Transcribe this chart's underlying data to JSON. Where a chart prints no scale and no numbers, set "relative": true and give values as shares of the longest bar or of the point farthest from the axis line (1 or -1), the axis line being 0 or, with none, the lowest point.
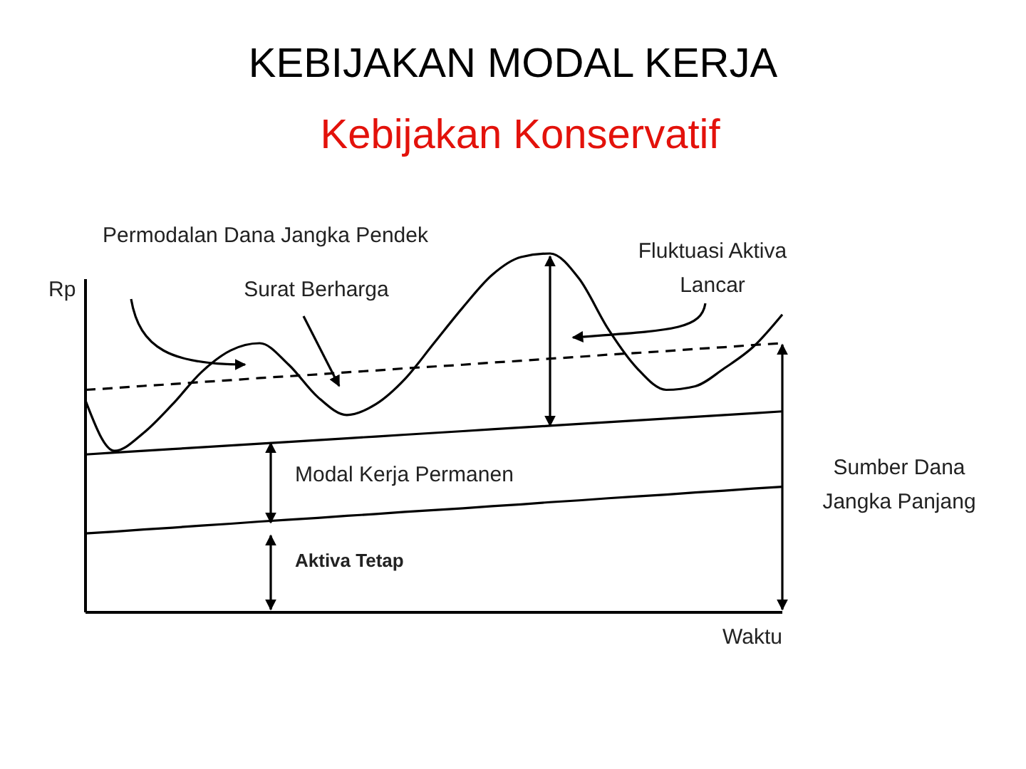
{
  "chart_data": {
    "type": "line",
    "title": "KEBIJAKAN MODAL KERJA",
    "subtitle": "Kebijakan Konservatif",
    "xlabel": "Waktu",
    "ylabel": "Rp",
    "relative": true,
    "marker": "none",
    "categories": [
      null,
      null,
      null,
      null,
      null,
      null,
      null,
      null,
      null,
      null,
      null,
      null,
      null,
      null,
      null,
      null,
      null,
      null,
      null,
      null,
      null,
      null,
      null,
      null,
      null
    ],
    "series": [
      {
        "color": "#000000",
        "line_style": "solid",
        "values": [
          0.59,
          0.45,
          0.5,
          0.58,
          0.67,
          0.73,
          0.75,
          0.69,
          0.6,
          0.55,
          0.58,
          0.65,
          0.75,
          0.85,
          0.94,
          0.99,
          1.0,
          0.93,
          0.79,
          0.68,
          0.62,
          0.63,
          0.68,
          0.74,
          0.83
        ]
      },
      {
        "color": "#000000",
        "line_style": "dashed",
        "values": [
          0.62,
          0.625,
          0.631,
          0.636,
          0.642,
          0.647,
          0.653,
          0.658,
          0.663,
          0.669,
          0.674,
          0.68,
          0.685,
          0.69,
          0.696,
          0.701,
          0.707,
          0.712,
          0.718,
          0.723,
          0.728,
          0.734,
          0.739,
          0.745,
          0.75
        ]
      },
      {
        "color": "#000000",
        "line_style": "solid",
        "values": [
          0.44,
          0.445,
          0.45,
          0.455,
          0.46,
          0.465,
          0.47,
          0.475,
          0.48,
          0.485,
          0.49,
          0.495,
          0.5,
          0.505,
          0.51,
          0.515,
          0.52,
          0.525,
          0.53,
          0.535,
          0.54,
          0.545,
          0.55,
          0.555,
          0.56
        ]
      },
      {
        "color": "#000000",
        "line_style": "solid",
        "values": [
          0.22,
          0.225,
          0.231,
          0.236,
          0.242,
          0.247,
          0.253,
          0.258,
          0.263,
          0.269,
          0.274,
          0.28,
          0.285,
          0.29,
          0.296,
          0.301,
          0.307,
          0.312,
          0.318,
          0.323,
          0.328,
          0.334,
          0.339,
          0.345,
          0.35
        ]
      }
    ],
    "annotations": [
      "Permodalan Dana Jangka Pendek",
      "Surat Berharga",
      "Fluktuasi Aktiva Lancar",
      "Modal Kerja Permanen",
      "Aktiva Tetap",
      "Sumber Dana Jangka Panjang"
    ]
  }
}
